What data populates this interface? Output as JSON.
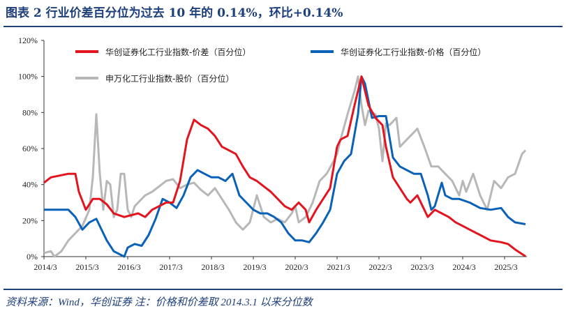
{
  "title": "图表 2   行业价差百分位为过去 10 年的 0.14%，环比+0.14%",
  "source": "资料来源：Wind，华创证券   注：价格和价差取 2014.3.1 以来分位数",
  "chart_data": {
    "type": "line",
    "xlabel": "",
    "ylabel": "",
    "ylim": [
      0,
      120
    ],
    "yticks": [
      "0%",
      "20%",
      "40%",
      "60%",
      "80%",
      "100%",
      "120%"
    ],
    "xticks": [
      "2014/3",
      "2015/3",
      "2016/3",
      "2017/3",
      "2018/3",
      "2019/3",
      "2020/3",
      "2021/3",
      "2022/3",
      "2023/3",
      "2024/3",
      "2025/3"
    ],
    "grid": false,
    "legend_position": "top",
    "series": [
      {
        "name": "华创证券化工行业指数-价差（百分位）",
        "color": "#e3141e",
        "points": [
          [
            "2014/3",
            41
          ],
          [
            "2014/5",
            44
          ],
          [
            "2014/10",
            46
          ],
          [
            "2014/12",
            46
          ],
          [
            "2015/1",
            36
          ],
          [
            "2015/3",
            26
          ],
          [
            "2015/5",
            32
          ],
          [
            "2015/7",
            32
          ],
          [
            "2015/9",
            29
          ],
          [
            "2015/11",
            24
          ],
          [
            "2016/2",
            22
          ],
          [
            "2016/6",
            24
          ],
          [
            "2016/8",
            22
          ],
          [
            "2016/10",
            26
          ],
          [
            "2017/2",
            30
          ],
          [
            "2017/4",
            30
          ],
          [
            "2017/6",
            42
          ],
          [
            "2017/8",
            65
          ],
          [
            "2017/10",
            76
          ],
          [
            "2017/12",
            73
          ],
          [
            "2018/2",
            71
          ],
          [
            "2018/4",
            67
          ],
          [
            "2018/6",
            61
          ],
          [
            "2018/8",
            59
          ],
          [
            "2018/10",
            57
          ],
          [
            "2018/12",
            50
          ],
          [
            "2019/2",
            44
          ],
          [
            "2019/4",
            42
          ],
          [
            "2019/6",
            39
          ],
          [
            "2019/8",
            36
          ],
          [
            "2019/10",
            32
          ],
          [
            "2019/12",
            28
          ],
          [
            "2020/2",
            26
          ],
          [
            "2020/4",
            30
          ],
          [
            "2020/6",
            26
          ],
          [
            "2020/7",
            19
          ],
          [
            "2020/9",
            26
          ],
          [
            "2020/11",
            32
          ],
          [
            "2021/1",
            38
          ],
          [
            "2021/3",
            61
          ],
          [
            "2021/4",
            65
          ],
          [
            "2021/6",
            67
          ],
          [
            "2021/8",
            84
          ],
          [
            "2021/10",
            100
          ],
          [
            "2021/12",
            84
          ],
          [
            "2022/2",
            77
          ],
          [
            "2022/4",
            73
          ],
          [
            "2022/5",
            61
          ],
          [
            "2022/7",
            44
          ],
          [
            "2022/9",
            38
          ],
          [
            "2022/11",
            32
          ],
          [
            "2022/12",
            30
          ],
          [
            "2023/2",
            34
          ],
          [
            "2023/4",
            26
          ],
          [
            "2023/5",
            22
          ],
          [
            "2023/7",
            26
          ],
          [
            "2023/9",
            24
          ],
          [
            "2023/11",
            22
          ],
          [
            "2024/1",
            19
          ],
          [
            "2024/3",
            17
          ],
          [
            "2024/5",
            15
          ],
          [
            "2024/8",
            12
          ],
          [
            "2024/11",
            9
          ],
          [
            "2025/2",
            8
          ],
          [
            "2025/4",
            7
          ],
          [
            "2025/6",
            4
          ],
          [
            "2025/9",
            0.14
          ]
        ]
      },
      {
        "name": "华创证券化工行业指数-价格（百分位）",
        "color": "#0a61b8",
        "points": [
          [
            "2014/3",
            26
          ],
          [
            "2014/6",
            26
          ],
          [
            "2014/10",
            26
          ],
          [
            "2014/12",
            22
          ],
          [
            "2015/2",
            15
          ],
          [
            "2015/4",
            19
          ],
          [
            "2015/6",
            21
          ],
          [
            "2015/7",
            17
          ],
          [
            "2015/9",
            9
          ],
          [
            "2015/11",
            3
          ],
          [
            "2016/2",
            0
          ],
          [
            "2016/3",
            5
          ],
          [
            "2016/5",
            7
          ],
          [
            "2016/7",
            6
          ],
          [
            "2016/9",
            12
          ],
          [
            "2016/11",
            21
          ],
          [
            "2017/1",
            32
          ],
          [
            "2017/3",
            30
          ],
          [
            "2017/5",
            27
          ],
          [
            "2017/7",
            34
          ],
          [
            "2017/9",
            44
          ],
          [
            "2017/11",
            48
          ],
          [
            "2018/1",
            46
          ],
          [
            "2018/3",
            44
          ],
          [
            "2018/5",
            44
          ],
          [
            "2018/7",
            42
          ],
          [
            "2018/9",
            46
          ],
          [
            "2018/11",
            34
          ],
          [
            "2019/1",
            30
          ],
          [
            "2019/3",
            26
          ],
          [
            "2019/5",
            24
          ],
          [
            "2019/7",
            24
          ],
          [
            "2019/9",
            22
          ],
          [
            "2019/11",
            19
          ],
          [
            "2020/1",
            13
          ],
          [
            "2020/3",
            9
          ],
          [
            "2020/5",
            9
          ],
          [
            "2020/7",
            8
          ],
          [
            "2020/9",
            13
          ],
          [
            "2020/11",
            19
          ],
          [
            "2021/1",
            26
          ],
          [
            "2021/3",
            46
          ],
          [
            "2021/5",
            53
          ],
          [
            "2021/7",
            57
          ],
          [
            "2021/9",
            79
          ],
          [
            "2021/10",
            100
          ],
          [
            "2021/11",
            96
          ],
          [
            "2022/1",
            77
          ],
          [
            "2022/3",
            78
          ],
          [
            "2022/5",
            78
          ],
          [
            "2022/7",
            55
          ],
          [
            "2022/9",
            50
          ],
          [
            "2022/11",
            48
          ],
          [
            "2023/1",
            46
          ],
          [
            "2023/3",
            46
          ],
          [
            "2023/5",
            34
          ],
          [
            "2023/6",
            26
          ],
          [
            "2023/7",
            28
          ],
          [
            "2023/9",
            41
          ],
          [
            "2023/10",
            34
          ],
          [
            "2023/12",
            32
          ],
          [
            "2024/2",
            32
          ],
          [
            "2024/5",
            30
          ],
          [
            "2024/8",
            27
          ],
          [
            "2024/11",
            26
          ],
          [
            "2025/2",
            27
          ],
          [
            "2025/4",
            22
          ],
          [
            "2025/6",
            19
          ],
          [
            "2025/9",
            18
          ]
        ]
      },
      {
        "name": "申万化工行业指数-股价（百分位）",
        "color": "#b7b7b7",
        "points": [
          [
            "2014/3",
            2
          ],
          [
            "2014/5",
            3
          ],
          [
            "2014/6",
            0
          ],
          [
            "2014/8",
            3
          ],
          [
            "2014/10",
            9
          ],
          [
            "2014/12",
            13
          ],
          [
            "2015/2",
            17
          ],
          [
            "2015/4",
            26
          ],
          [
            "2015/5",
            44
          ],
          [
            "2015/6",
            79
          ],
          [
            "2015/7",
            46
          ],
          [
            "2015/8",
            26
          ],
          [
            "2015/9",
            42
          ],
          [
            "2015/10",
            40
          ],
          [
            "2015/11",
            22
          ],
          [
            "2015/12",
            26
          ],
          [
            "2016/1",
            46
          ],
          [
            "2016/2",
            46
          ],
          [
            "2016/3",
            26
          ],
          [
            "2016/4",
            22
          ],
          [
            "2016/5",
            28
          ],
          [
            "2016/6",
            30
          ],
          [
            "2016/8",
            34
          ],
          [
            "2016/10",
            36
          ],
          [
            "2016/12",
            39
          ],
          [
            "2017/2",
            42
          ],
          [
            "2017/4",
            43
          ],
          [
            "2017/6",
            38
          ],
          [
            "2017/8",
            40
          ],
          [
            "2017/10",
            41
          ],
          [
            "2017/12",
            37
          ],
          [
            "2018/2",
            34
          ],
          [
            "2018/4",
            38
          ],
          [
            "2018/6",
            32
          ],
          [
            "2018/8",
            26
          ],
          [
            "2018/10",
            19
          ],
          [
            "2018/12",
            15
          ],
          [
            "2019/2",
            19
          ],
          [
            "2019/4",
            34
          ],
          [
            "2019/6",
            22
          ],
          [
            "2019/8",
            19
          ],
          [
            "2019/10",
            21
          ],
          [
            "2019/12",
            19
          ],
          [
            "2020/2",
            24
          ],
          [
            "2020/3",
            28
          ],
          [
            "2020/4",
            19
          ],
          [
            "2020/6",
            22
          ],
          [
            "2020/8",
            30
          ],
          [
            "2020/10",
            42
          ],
          [
            "2020/12",
            46
          ],
          [
            "2021/2",
            53
          ],
          [
            "2021/3",
            57
          ],
          [
            "2021/4",
            65
          ],
          [
            "2021/6",
            79
          ],
          [
            "2021/8",
            92
          ],
          [
            "2021/9",
            100
          ],
          [
            "2021/10",
            84
          ],
          [
            "2021/11",
            73
          ],
          [
            "2021/12",
            81
          ],
          [
            "2022/2",
            79
          ],
          [
            "2022/3",
            71
          ],
          [
            "2022/4",
            53
          ],
          [
            "2022/5",
            74
          ],
          [
            "2022/6",
            73
          ],
          [
            "2022/8",
            77
          ],
          [
            "2022/9",
            61
          ],
          [
            "2022/11",
            65
          ],
          [
            "2023/1",
            69
          ],
          [
            "2023/2",
            71
          ],
          [
            "2023/4",
            61
          ],
          [
            "2023/6",
            50
          ],
          [
            "2023/8",
            50
          ],
          [
            "2023/10",
            46
          ],
          [
            "2023/12",
            42
          ],
          [
            "2024/2",
            34
          ],
          [
            "2024/3",
            42
          ],
          [
            "2024/4",
            36
          ],
          [
            "2024/6",
            46
          ],
          [
            "2024/8",
            34
          ],
          [
            "2024/10",
            26
          ],
          [
            "2024/12",
            42
          ],
          [
            "2025/2",
            38
          ],
          [
            "2025/4",
            44
          ],
          [
            "2025/6",
            46
          ],
          [
            "2025/8",
            57
          ],
          [
            "2025/9",
            59
          ]
        ]
      }
    ]
  }
}
